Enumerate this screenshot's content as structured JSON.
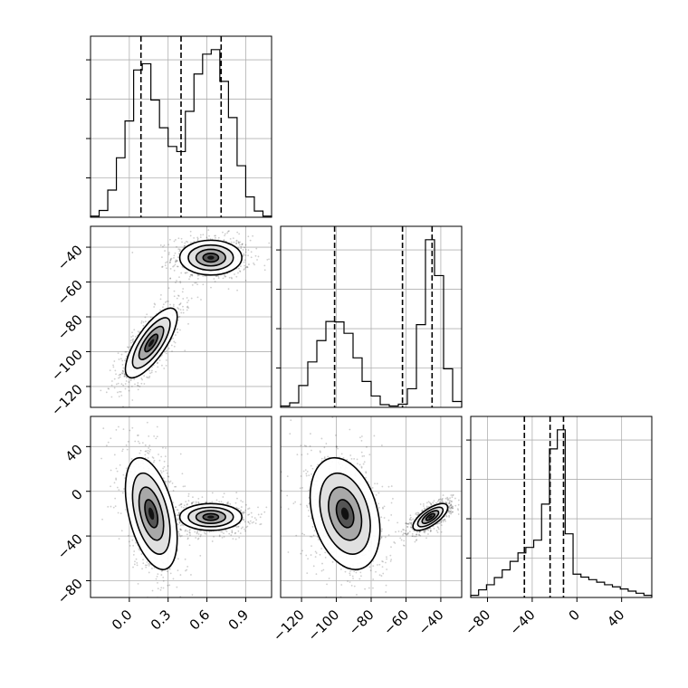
{
  "chart_data": {
    "type": "corner",
    "parameters": [
      {
        "ticks": [
          0.0,
          0.3,
          0.6,
          0.9
        ],
        "tick_labels": [
          "0.0",
          "0.3",
          "0.6",
          "0.9"
        ],
        "range": [
          -0.3,
          1.1
        ],
        "quantiles": [
          0.09,
          0.4,
          0.71
        ],
        "histogram": [
          0.2,
          1.2,
          4.8,
          10.5,
          17.0,
          26.0,
          27.1,
          20.7,
          15.8,
          12.5,
          11.6,
          18.7,
          25.3,
          28.8,
          29.6,
          24.0,
          17.6,
          9.1,
          3.6,
          1.1,
          0.2
        ]
      },
      {
        "ticks": [
          -120,
          -100,
          -80,
          -60,
          -40
        ],
        "tick_labels": [
          "−120",
          "−100",
          "−80",
          "−60",
          "−40"
        ],
        "range": [
          -132,
          -28
        ],
        "quantiles": [
          -101,
          -62,
          -45
        ],
        "histogram": [
          0.3,
          1.0,
          4.8,
          10.0,
          14.7,
          18.9,
          18.8,
          16.3,
          10.9,
          5.7,
          2.5,
          0.6,
          0.3,
          0.7,
          4.1,
          18.2,
          36.9,
          29.0,
          8.5,
          1.3
        ]
      },
      {
        "ticks": [
          -80,
          -40,
          0,
          40
        ],
        "tick_labels": [
          "−80",
          "−40",
          "0",
          "40"
        ],
        "range": [
          -95,
          67
        ],
        "quantiles": [
          -47,
          -24,
          -12
        ],
        "histogram": [
          0.5,
          1.8,
          3.0,
          4.7,
          6.5,
          8.5,
          10.5,
          11.8,
          13.5,
          22.0,
          35.0,
          39.5,
          15.0,
          5.5,
          4.8,
          4.2,
          3.6,
          3.0,
          2.5,
          2.0,
          1.5,
          1.0,
          0.5
        ]
      }
    ],
    "joint": [
      {
        "x": 0,
        "y": 1,
        "modes": [
          {
            "center": [
              0.63,
              -46
            ],
            "spread": [
              0.12,
              5.0
            ],
            "corr": 0.0,
            "weight": 0.5
          },
          {
            "center": [
              0.17,
              -95
            ],
            "spread": [
              0.1,
              10.0
            ],
            "corr": 0.75,
            "weight": 0.5
          }
        ]
      },
      {
        "x": 0,
        "y": 2,
        "modes": [
          {
            "center": [
              0.63,
              -23
            ],
            "spread": [
              0.12,
              6.0
            ],
            "corr": 0.0,
            "weight": 0.5
          },
          {
            "center": [
              0.17,
              -20
            ],
            "spread": [
              0.1,
              25.0
            ],
            "corr": -0.45,
            "weight": 0.5
          }
        ]
      },
      {
        "x": 1,
        "y": 2,
        "modes": [
          {
            "center": [
              -46,
              -23
            ],
            "spread": [
              5.0,
              6.0
            ],
            "corr": 0.7,
            "weight": 0.5
          },
          {
            "center": [
              -95,
              -20
            ],
            "spread": [
              10.0,
              25.0
            ],
            "corr": -0.3,
            "weight": 0.5
          }
        ]
      }
    ],
    "grid": true
  }
}
